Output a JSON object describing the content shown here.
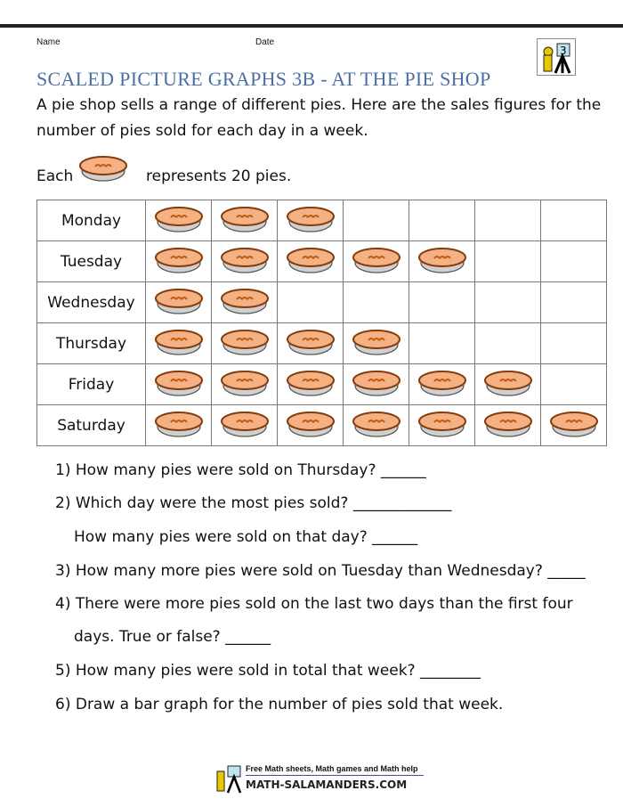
{
  "header": {
    "name_label": "Name",
    "date_label": "Date",
    "logo_text": "3"
  },
  "title": "SCALED PICTURE GRAPHS 3B - AT THE PIE SHOP",
  "intro": "A pie shop sells a range of different pies. Here are the sales figures for the number of pies sold for each day in a week.",
  "key": {
    "before": "Each",
    "after": "represents 20 pies.",
    "icon": "pie-icon"
  },
  "chart_data": {
    "type": "table",
    "unit_value": 20,
    "columns": 7,
    "rows": [
      {
        "day": "Monday",
        "pies": 3
      },
      {
        "day": "Tuesday",
        "pies": 5
      },
      {
        "day": "Wednesday",
        "pies": 2
      },
      {
        "day": "Thursday",
        "pies": 4
      },
      {
        "day": "Friday",
        "pies": 6
      },
      {
        "day": "Saturday",
        "pies": 7
      }
    ]
  },
  "questions": [
    "1) How many pies were sold on Thursday? ______",
    "2) Which day were the most pies sold? _____________",
    "How many pies were sold on that day? ______",
    "3) How many more pies were sold on Tuesday than Wednesday? _____",
    "4) There were more pies sold on the last two days than the first four",
    "days. True or false? ______",
    "5) How many pies were sold in total that week? ________",
    "6) Draw a bar graph for the number of pies sold that week."
  ],
  "footer": {
    "tagline": "Free Math sheets, Math games and Math help",
    "site": "MATH-SALAMANDERS.COM"
  },
  "colors": {
    "title": "#4a6fa5",
    "pie_fill": "#f4b183",
    "pie_rim": "#c55a11",
    "dish": "#d0d0d0"
  }
}
